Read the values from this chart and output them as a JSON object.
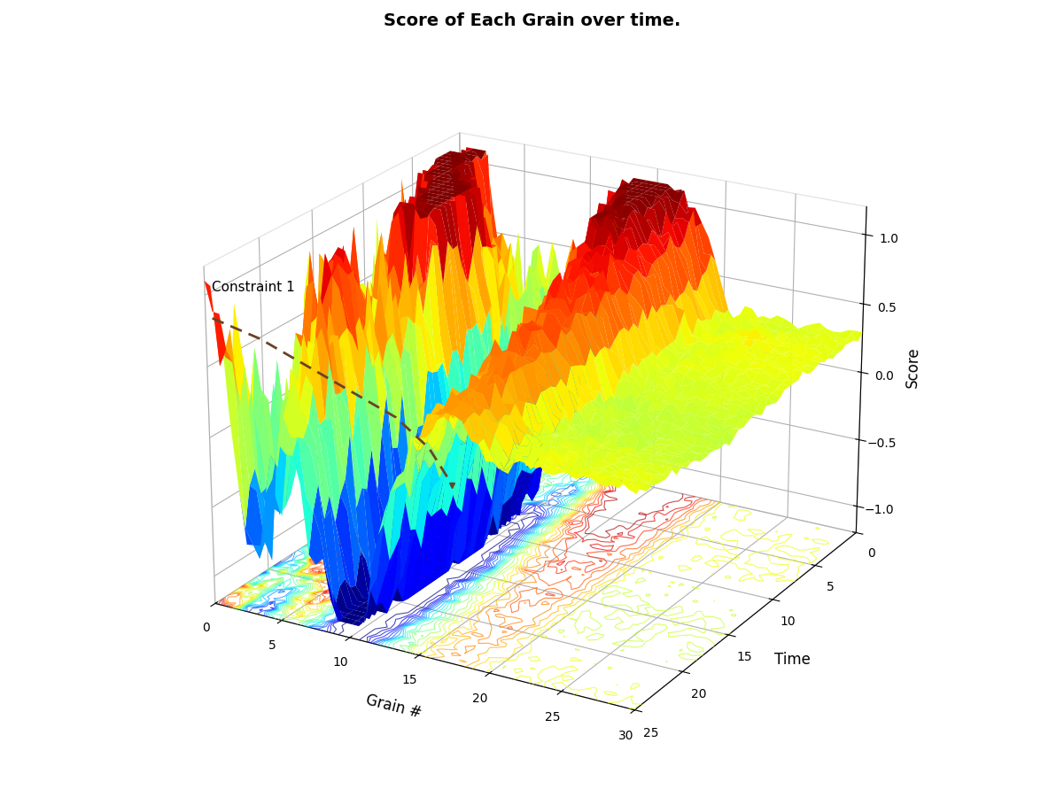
{
  "title": "Score of Each Grain over time.",
  "xlabel": "Time",
  "ylabel": "Grain #",
  "zlabel": "Score",
  "zlim": [
    -1.2,
    1.2
  ],
  "zticks": [
    -1,
    -0.5,
    0,
    0.5,
    1
  ],
  "time_ticks": [
    0,
    5,
    10,
    15,
    20,
    25
  ],
  "grain_ticks": [
    0,
    5,
    10,
    15,
    20,
    25,
    30
  ],
  "constraint_label": "Constraint 1",
  "background_color": "#ffffff",
  "title_fontsize": 14,
  "label_fontsize": 12,
  "elev": 22,
  "azim": -60
}
